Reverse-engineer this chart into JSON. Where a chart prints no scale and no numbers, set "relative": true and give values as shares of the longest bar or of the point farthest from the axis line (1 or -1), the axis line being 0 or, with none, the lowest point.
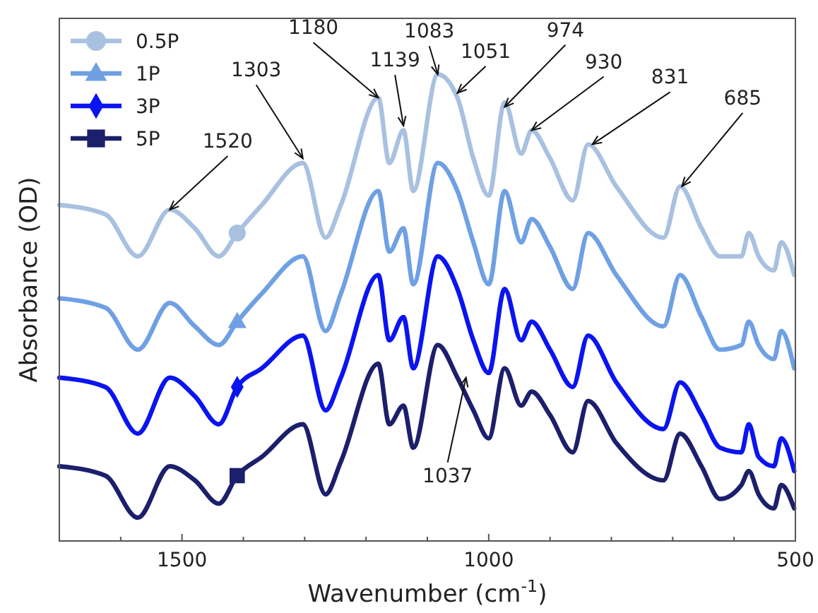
{
  "chart_data": {
    "type": "line",
    "xlabel": "Wavenumber (cm$^{-1}$)",
    "ylabel": "Absorbance (OD)",
    "relative": true,
    "x": [
      1700,
      1625,
      1572,
      1520,
      1479,
      1440,
      1410,
      1370,
      1303,
      1266,
      1241,
      1180,
      1162,
      1139,
      1123,
      1083,
      1051,
      1025,
      1000,
      974,
      947,
      930,
      900,
      863,
      838,
      792,
      715,
      688,
      653,
      623,
      588,
      576,
      560,
      535,
      523,
      502
    ],
    "xlim": [
      1700,
      500
    ],
    "xticks": [
      {
        "value": 1600,
        "label": null
      },
      1500,
      {
        "value": 1400,
        "label": null
      },
      {
        "value": 1300,
        "label": null
      },
      {
        "value": 1200,
        "label": null
      },
      {
        "value": 1100,
        "label": null
      },
      1000,
      {
        "value": 900,
        "label": null
      },
      {
        "value": 800,
        "label": null
      },
      {
        "value": 700,
        "label": null
      },
      {
        "value": 600,
        "label": null
      },
      500
    ],
    "series": [
      {
        "name": "0.5P",
        "color": "#a9c1e0",
        "values": [
          0.72,
          0.7,
          0.61,
          0.71,
          0.67,
          0.61,
          0.66,
          0.72,
          0.81,
          0.65,
          0.72,
          0.95,
          0.81,
          0.88,
          0.75,
          1.0,
          0.95,
          0.82,
          0.74,
          0.94,
          0.83,
          0.88,
          0.82,
          0.73,
          0.85,
          0.76,
          0.65,
          0.76,
          0.67,
          0.61,
          0.61,
          0.66,
          0.61,
          0.58,
          0.64,
          0.57
        ]
      },
      {
        "name": "1P",
        "color": "#6fa0e4",
        "values": [
          0.52,
          0.5,
          0.41,
          0.51,
          0.46,
          0.42,
          0.47,
          0.53,
          0.61,
          0.45,
          0.53,
          0.75,
          0.62,
          0.67,
          0.55,
          0.81,
          0.75,
          0.64,
          0.55,
          0.75,
          0.64,
          0.69,
          0.63,
          0.54,
          0.66,
          0.57,
          0.46,
          0.57,
          0.48,
          0.41,
          0.42,
          0.47,
          0.42,
          0.39,
          0.45,
          0.37
        ]
      },
      {
        "name": "3P",
        "color": "#0a14f0",
        "values": [
          0.35,
          0.33,
          0.23,
          0.35,
          0.31,
          0.25,
          0.33,
          0.37,
          0.44,
          0.28,
          0.35,
          0.57,
          0.43,
          0.48,
          0.37,
          0.61,
          0.54,
          0.43,
          0.36,
          0.54,
          0.43,
          0.47,
          0.41,
          0.33,
          0.44,
          0.34,
          0.24,
          0.34,
          0.27,
          0.2,
          0.19,
          0.25,
          0.18,
          0.16,
          0.22,
          0.15
        ]
      },
      {
        "name": "5P",
        "color": "#1c1f6b",
        "values": [
          0.16,
          0.14,
          0.05,
          0.16,
          0.13,
          0.08,
          0.14,
          0.18,
          0.25,
          0.1,
          0.17,
          0.38,
          0.25,
          0.29,
          0.2,
          0.42,
          0.35,
          0.28,
          0.22,
          0.37,
          0.29,
          0.32,
          0.27,
          0.19,
          0.3,
          0.21,
          0.13,
          0.23,
          0.16,
          0.09,
          0.12,
          0.15,
          0.1,
          0.07,
          0.12,
          0.07
        ]
      },
      {
        "type": "scatter",
        "color": "#a9c1e0",
        "marker": "circle",
        "values": [
          null,
          null,
          null,
          null,
          null,
          null,
          0.66,
          null,
          null,
          null,
          null,
          null,
          null,
          null,
          null,
          null,
          null,
          null,
          null,
          null,
          null,
          null,
          null,
          null,
          null,
          null,
          null,
          null,
          null,
          null,
          null,
          null,
          null,
          null,
          null,
          null
        ]
      },
      {
        "type": "scatter",
        "color": "#6fa0e4",
        "marker": "triangle",
        "values": [
          null,
          null,
          null,
          null,
          null,
          null,
          0.47,
          null,
          null,
          null,
          null,
          null,
          null,
          null,
          null,
          null,
          null,
          null,
          null,
          null,
          null,
          null,
          null,
          null,
          null,
          null,
          null,
          null,
          null,
          null,
          null,
          null,
          null,
          null,
          null,
          null
        ]
      },
      {
        "type": "scatter",
        "color": "#0a14f0",
        "marker": "diamond",
        "values": [
          null,
          null,
          null,
          null,
          null,
          null,
          0.33,
          null,
          null,
          null,
          null,
          null,
          null,
          null,
          null,
          null,
          null,
          null,
          null,
          null,
          null,
          null,
          null,
          null,
          null,
          null,
          null,
          null,
          null,
          null,
          null,
          null,
          null,
          null,
          null,
          null
        ]
      },
      {
        "type": "scatter",
        "color": "#1c1f6b",
        "marker": "square",
        "values": [
          null,
          null,
          null,
          null,
          null,
          null,
          0.14,
          null,
          null,
          null,
          null,
          null,
          null,
          null,
          null,
          null,
          null,
          null,
          null,
          null,
          null,
          null,
          null,
          null,
          null,
          null,
          null,
          null,
          null,
          null,
          null,
          null,
          null,
          null,
          null,
          null
        ]
      }
    ],
    "annotations": [
      {
        "text": "1520",
        "x": 1520,
        "y": 0.71
      },
      {
        "text": "1303",
        "x": 1303,
        "y": 0.82
      },
      {
        "text": "1180",
        "x": 1180,
        "y": 0.95
      },
      {
        "text": "1139",
        "x": 1139,
        "y": 0.89
      },
      {
        "text": "1083",
        "x": 1083,
        "y": 1.0
      },
      {
        "text": "1051",
        "x": 1051,
        "y": 0.96
      },
      {
        "text": "974",
        "x": 974,
        "y": 0.93
      },
      {
        "text": "930",
        "x": 930,
        "y": 0.88
      },
      {
        "text": "831",
        "x": 831,
        "y": 0.85
      },
      {
        "text": "685",
        "x": 685,
        "y": 0.76
      },
      {
        "text": "1037",
        "x": 1037,
        "y": 0.35
      }
    ],
    "legend": "top left",
    "line_style": "solid"
  }
}
